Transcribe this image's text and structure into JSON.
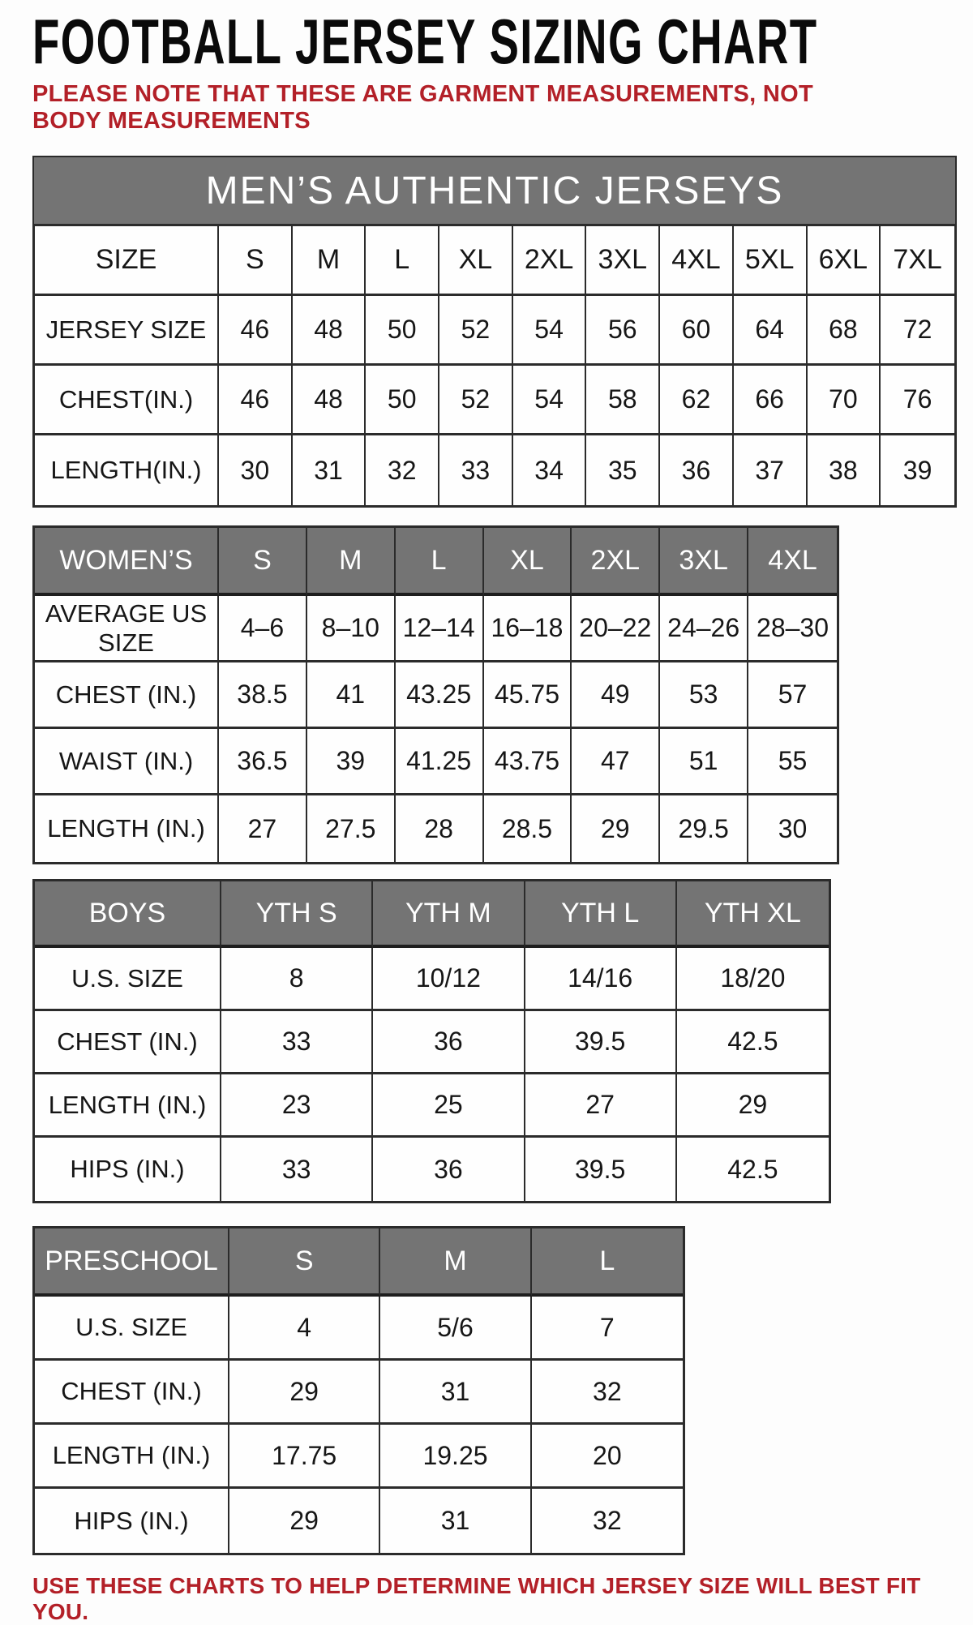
{
  "page": {
    "title": "FOOTBALL JERSEY SIZING CHART",
    "note": "PLEASE NOTE THAT THESE ARE GARMENT MEASUREMENTS, NOT BODY MEASUREMENTS",
    "footer": "USE THESE CHARTS TO HELP DETERMINE WHICH JERSEY SIZE WILL BEST FIT YOU.",
    "colors": {
      "accent_red": "#b32028",
      "header_gray": "#747474",
      "border_dark": "#2b2b2b"
    }
  },
  "tables": [
    {
      "id": "mens",
      "banner": "MEN’S AUTHENTIC JERSEYS",
      "header_row": {
        "label": "SIZE",
        "cols": [
          "S",
          "M",
          "L",
          "XL",
          "2XL",
          "3XL",
          "4XL",
          "5XL",
          "6XL",
          "7XL"
        ]
      },
      "rows": [
        {
          "label": "JERSEY SIZE",
          "values": [
            "46",
            "48",
            "50",
            "52",
            "54",
            "56",
            "60",
            "64",
            "68",
            "72"
          ]
        },
        {
          "label": "CHEST(IN.)",
          "values": [
            "46",
            "48",
            "50",
            "52",
            "54",
            "58",
            "62",
            "66",
            "70",
            "76"
          ]
        },
        {
          "label": "LENGTH(IN.)",
          "values": [
            "30",
            "31",
            "32",
            "33",
            "34",
            "35",
            "36",
            "37",
            "38",
            "39"
          ]
        }
      ]
    },
    {
      "id": "womens",
      "header_row": {
        "label": "WOMEN’S",
        "cols": [
          "S",
          "M",
          "L",
          "XL",
          "2XL",
          "3XL",
          "4XL"
        ]
      },
      "rows": [
        {
          "label": "AVERAGE US SIZE",
          "values": [
            "4–6",
            "8–10",
            "12–14",
            "16–18",
            "20–22",
            "24–26",
            "28–30"
          ]
        },
        {
          "label": "CHEST (IN.)",
          "values": [
            "38.5",
            "41",
            "43.25",
            "45.75",
            "49",
            "53",
            "57"
          ]
        },
        {
          "label": "WAIST (IN.)",
          "values": [
            "36.5",
            "39",
            "41.25",
            "43.75",
            "47",
            "51",
            "55"
          ]
        },
        {
          "label": "LENGTH (IN.)",
          "values": [
            "27",
            "27.5",
            "28",
            "28.5",
            "29",
            "29.5",
            "30"
          ]
        }
      ]
    },
    {
      "id": "boys",
      "header_row": {
        "label": "BOYS",
        "cols": [
          "YTH S",
          "YTH M",
          "YTH L",
          "YTH XL"
        ]
      },
      "rows": [
        {
          "label": "U.S. SIZE",
          "values": [
            "8",
            "10/12",
            "14/16",
            "18/20"
          ]
        },
        {
          "label": "CHEST (IN.)",
          "values": [
            "33",
            "36",
            "39.5",
            "42.5"
          ]
        },
        {
          "label": "LENGTH (IN.)",
          "values": [
            "23",
            "25",
            "27",
            "29"
          ]
        },
        {
          "label": "HIPS (IN.)",
          "values": [
            "33",
            "36",
            "39.5",
            "42.5"
          ]
        }
      ]
    },
    {
      "id": "preschool",
      "header_row": {
        "label": "PRESCHOOL",
        "cols": [
          "S",
          "M",
          "L"
        ]
      },
      "rows": [
        {
          "label": "U.S. SIZE",
          "values": [
            "4",
            "5/6",
            "7"
          ]
        },
        {
          "label": "CHEST (IN.)",
          "values": [
            "29",
            "31",
            "32"
          ]
        },
        {
          "label": "LENGTH (IN.)",
          "values": [
            "17.75",
            "19.25",
            "20"
          ]
        },
        {
          "label": "HIPS (IN.)",
          "values": [
            "29",
            "31",
            "32"
          ]
        }
      ]
    }
  ]
}
